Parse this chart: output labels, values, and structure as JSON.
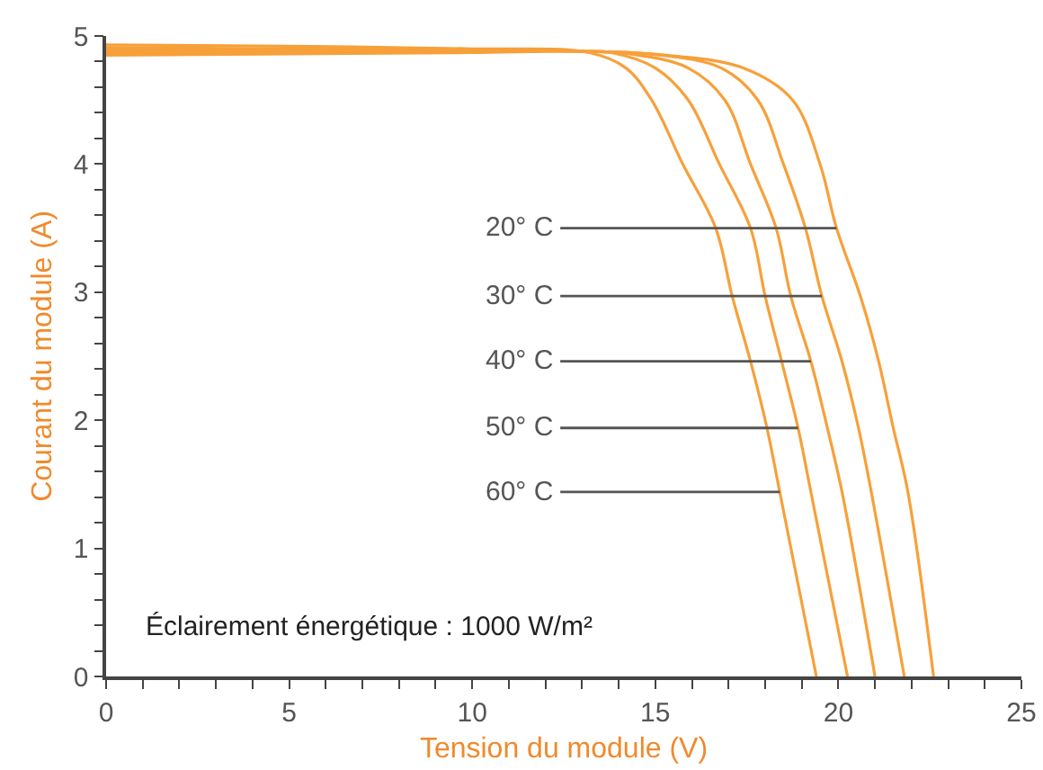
{
  "chart_data": {
    "type": "line",
    "xlabel": "Tension du module (V)",
    "ylabel": "Courant du module (A)",
    "xlim": [
      0,
      25
    ],
    "ylim": [
      0,
      5
    ],
    "xticks": [
      0,
      {
        "value": 1,
        "label": null
      },
      {
        "value": 2,
        "label": null
      },
      {
        "value": 3,
        "label": null
      },
      {
        "value": 4,
        "label": null
      },
      5,
      {
        "value": 6,
        "label": null
      },
      {
        "value": 7,
        "label": null
      },
      {
        "value": 8,
        "label": null
      },
      {
        "value": 9,
        "label": null
      },
      10,
      {
        "value": 11,
        "label": null
      },
      {
        "value": 12,
        "label": null
      },
      {
        "value": 13,
        "label": null
      },
      {
        "value": 14,
        "label": null
      },
      15,
      {
        "value": 16,
        "label": null
      },
      {
        "value": 17,
        "label": null
      },
      {
        "value": 18,
        "label": null
      },
      {
        "value": 19,
        "label": null
      },
      20,
      {
        "value": 21,
        "label": null
      },
      {
        "value": 22,
        "label": null
      },
      {
        "value": 23,
        "label": null
      },
      {
        "value": 24,
        "label": null
      },
      25
    ],
    "yticks": [
      0,
      {
        "value": 0.2,
        "label": null
      },
      {
        "value": 0.4,
        "label": null
      },
      {
        "value": 0.6,
        "label": null
      },
      {
        "value": 0.8,
        "label": null
      },
      1,
      {
        "value": 1.2,
        "label": null
      },
      {
        "value": 1.4,
        "label": null
      },
      {
        "value": 1.6,
        "label": null
      },
      {
        "value": 1.8,
        "label": null
      },
      2,
      {
        "value": 2.2,
        "label": null
      },
      {
        "value": 2.4,
        "label": null
      },
      {
        "value": 2.6,
        "label": null
      },
      {
        "value": 2.8,
        "label": null
      },
      3,
      {
        "value": 3.2,
        "label": null
      },
      {
        "value": 3.4,
        "label": null
      },
      {
        "value": 3.6,
        "label": null
      },
      {
        "value": 3.8,
        "label": null
      },
      4,
      {
        "value": 4.2,
        "label": null
      },
      {
        "value": 4.4,
        "label": null
      },
      {
        "value": 4.6,
        "label": null
      },
      {
        "value": 4.8,
        "label": null
      },
      5
    ],
    "grid": false,
    "marker": "none",
    "line_style": "solid",
    "series": [
      {
        "color": "#f7a03a",
        "x": [
          0,
          5,
          10,
          13,
          15.3,
          17.4,
          18.75,
          19.5,
          19.95,
          20.6,
          21.1,
          21.5,
          21.9,
          22.6
        ],
        "values": [
          4.85,
          4.86,
          4.87,
          4.88,
          4.85,
          4.75,
          4.5,
          4,
          3.5,
          2.97,
          2.46,
          1.94,
          1.44,
          0
        ]
      },
      {
        "color": "#f7a03a",
        "x": [
          0,
          5,
          10,
          13,
          14.8,
          16.8,
          17.8,
          18.5,
          19.1,
          19.55,
          20.1,
          20.55,
          20.9,
          21.8
        ],
        "values": [
          4.87,
          4.87,
          4.88,
          4.88,
          4.86,
          4.75,
          4.5,
          4,
          3.5,
          2.97,
          2.46,
          1.94,
          1.44,
          0
        ]
      },
      {
        "color": "#f7a03a",
        "x": [
          0,
          5,
          10,
          13,
          14.3,
          15.9,
          16.9,
          17.6,
          18.3,
          18.7,
          19.25,
          19.7,
          20.1,
          21
        ],
        "values": [
          4.89,
          4.89,
          4.89,
          4.88,
          4.86,
          4.75,
          4.5,
          4,
          3.5,
          2.97,
          2.46,
          1.94,
          1.44,
          0
        ]
      },
      {
        "color": "#f7a03a",
        "x": [
          0,
          5,
          10,
          13,
          13.8,
          15,
          15.9,
          16.75,
          17.6,
          18,
          18.45,
          18.9,
          19.25,
          20.25
        ],
        "values": [
          4.91,
          4.9,
          4.89,
          4.88,
          4.87,
          4.75,
          4.5,
          4,
          3.5,
          2.97,
          2.46,
          1.94,
          1.44,
          0
        ]
      },
      {
        "color": "#f7a03a",
        "x": [
          0,
          5,
          10,
          13.2,
          14.2,
          14.9,
          15.75,
          16.65,
          17.1,
          17.6,
          18.05,
          18.4,
          19.4
        ],
        "values": [
          4.93,
          4.92,
          4.9,
          4.87,
          4.75,
          4.5,
          4,
          3.5,
          2.97,
          2.46,
          1.94,
          1.44,
          0
        ]
      }
    ],
    "annotations": [
      {
        "text": "20° C",
        "x": 19.95,
        "y": 3.5
      },
      {
        "text": "30° C",
        "x": 19.55,
        "y": 2.97
      },
      {
        "text": "40° C",
        "x": 19.25,
        "y": 2.46
      },
      {
        "text": "50° C",
        "x": 18.9,
        "y": 1.94
      },
      {
        "text": "60° C",
        "x": 18.4,
        "y": 1.44
      },
      "Éclairement énergétique : 1000 W/m²"
    ]
  }
}
